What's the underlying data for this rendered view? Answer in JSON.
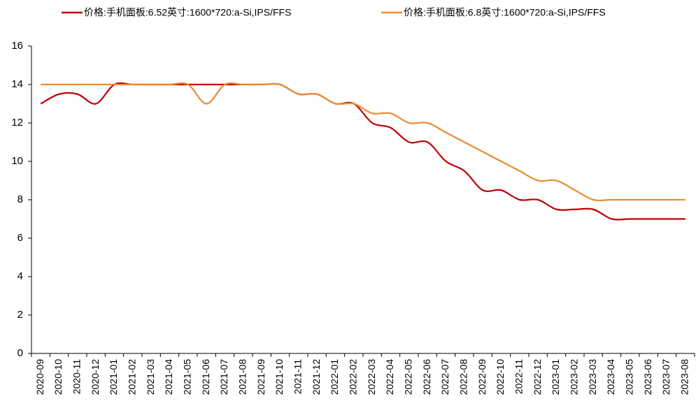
{
  "chart_data": {
    "type": "line",
    "categories": [
      "2020-09",
      "2020-10",
      "2020-11",
      "2020-12",
      "2021-01",
      "2021-02",
      "2021-03",
      "2021-04",
      "2021-05",
      "2021-06",
      "2021-07",
      "2021-08",
      "2021-09",
      "2021-10",
      "2021-11",
      "2021-12",
      "2022-01",
      "2022-02",
      "2022-03",
      "2022-04",
      "2022-05",
      "2022-06",
      "2022-07",
      "2022-08",
      "2022-09",
      "2022-10",
      "2022-11",
      "2022-12",
      "2023-01",
      "2023-02",
      "2023-03",
      "2023-04",
      "2023-05",
      "2023-06",
      "2023-07",
      "2023-08"
    ],
    "series": [
      {
        "name": "价格:手机面板:6.52英寸:1600*720:a-Si,IPS/FFS",
        "color": "#c00000",
        "values": [
          13,
          13.5,
          13.5,
          13,
          14,
          14,
          14,
          14,
          14,
          14,
          14,
          14,
          14,
          14,
          13.5,
          13.5,
          13,
          13,
          12,
          11.75,
          11,
          11,
          10,
          9.5,
          8.5,
          8.5,
          8,
          8,
          7.5,
          7.5,
          7.5,
          7,
          7,
          7,
          7,
          7
        ]
      },
      {
        "name": "价格:手机面板:6.8英寸:1600*720:a-Si,IPS/FFS",
        "color": "#ed8b34",
        "values": [
          14,
          14,
          14,
          14,
          14,
          14,
          14,
          14,
          14,
          13,
          14,
          14,
          14,
          14,
          13.5,
          13.5,
          13,
          13,
          12.5,
          12.5,
          12,
          12,
          11.5,
          11,
          10.5,
          10,
          9.5,
          9,
          9,
          8.5,
          8,
          8,
          8,
          8,
          8,
          8
        ]
      }
    ],
    "ylim": [
      0,
      16
    ],
    "yticks": [
      0,
      2,
      4,
      6,
      8,
      10,
      12,
      14,
      16
    ],
    "legend": "top"
  }
}
